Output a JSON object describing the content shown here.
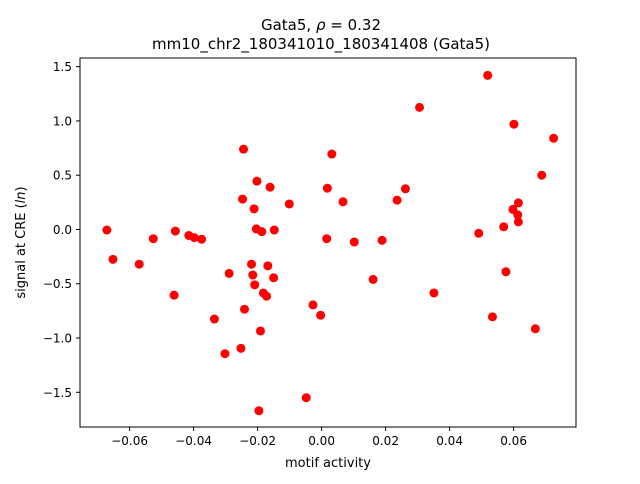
{
  "chart_data": {
    "type": "scatter",
    "title_prefix": "Gata5, ",
    "title_rho": "ρ",
    "title_value": " = 0.32",
    "subtitle": "mm10_chr2_180341010_180341408 (Gata5)",
    "xlabel": "motif activity",
    "ylabel_prefix": "signal at CRE (",
    "ylabel_italic": "ln",
    "ylabel_suffix": ")",
    "xlim": [
      -0.0755,
      0.0795
    ],
    "ylim": [
      -1.82,
      1.58
    ],
    "xticks": [
      -0.06,
      -0.04,
      -0.02,
      0.0,
      0.02,
      0.04,
      0.06
    ],
    "xtick_labels": [
      "−0.06",
      "−0.04",
      "−0.02",
      "0.00",
      "0.02",
      "0.04",
      "0.06"
    ],
    "yticks": [
      -1.5,
      -1.0,
      -0.5,
      0.0,
      0.5,
      1.0,
      1.5
    ],
    "ytick_labels": [
      "−1.5",
      "−1.0",
      "−0.5",
      "0.0",
      "0.5",
      "1.0",
      "1.5"
    ],
    "marker_color": "#ff0000",
    "grid": false,
    "points": [
      {
        "x": -0.0671,
        "y": -0.005
      },
      {
        "x": -0.0652,
        "y": -0.275
      },
      {
        "x": -0.057,
        "y": -0.32
      },
      {
        "x": -0.0526,
        "y": -0.085
      },
      {
        "x": -0.0461,
        "y": -0.605
      },
      {
        "x": -0.0457,
        "y": -0.015
      },
      {
        "x": -0.0415,
        "y": -0.055
      },
      {
        "x": -0.0398,
        "y": -0.075
      },
      {
        "x": -0.0375,
        "y": -0.09
      },
      {
        "x": -0.0335,
        "y": -0.825
      },
      {
        "x": -0.0302,
        "y": -1.145
      },
      {
        "x": -0.0289,
        "y": -0.405
      },
      {
        "x": -0.0252,
        "y": -1.095
      },
      {
        "x": -0.0247,
        "y": 0.28
      },
      {
        "x": -0.0244,
        "y": 0.74
      },
      {
        "x": -0.0241,
        "y": -0.735
      },
      {
        "x": -0.0219,
        "y": -0.32
      },
      {
        "x": -0.0215,
        "y": -0.42
      },
      {
        "x": -0.0211,
        "y": 0.19
      },
      {
        "x": -0.0209,
        "y": -0.51
      },
      {
        "x": -0.0204,
        "y": 0.005
      },
      {
        "x": -0.0202,
        "y": 0.445
      },
      {
        "x": -0.0196,
        "y": -1.67
      },
      {
        "x": -0.0191,
        "y": -0.935
      },
      {
        "x": -0.0187,
        "y": -0.02
      },
      {
        "x": -0.0182,
        "y": -0.585
      },
      {
        "x": -0.0172,
        "y": -0.615
      },
      {
        "x": -0.0168,
        "y": -0.335
      },
      {
        "x": -0.0161,
        "y": 0.39
      },
      {
        "x": -0.015,
        "y": -0.445
      },
      {
        "x": -0.0148,
        "y": -0.005
      },
      {
        "x": -0.0101,
        "y": 0.235
      },
      {
        "x": -0.0048,
        "y": -1.55
      },
      {
        "x": -0.0027,
        "y": -0.695
      },
      {
        "x": -0.0003,
        "y": -0.79
      },
      {
        "x": 0.0016,
        "y": -0.085
      },
      {
        "x": 0.0018,
        "y": 0.38
      },
      {
        "x": 0.0032,
        "y": 0.695
      },
      {
        "x": 0.0067,
        "y": 0.255
      },
      {
        "x": 0.0102,
        "y": -0.115
      },
      {
        "x": 0.0161,
        "y": -0.46
      },
      {
        "x": 0.0189,
        "y": -0.1
      },
      {
        "x": 0.0236,
        "y": 0.27
      },
      {
        "x": 0.0262,
        "y": 0.375
      },
      {
        "x": 0.0306,
        "y": 1.125
      },
      {
        "x": 0.0351,
        "y": -0.585
      },
      {
        "x": 0.0491,
        "y": -0.035
      },
      {
        "x": 0.0519,
        "y": 1.42
      },
      {
        "x": 0.0534,
        "y": -0.805
      },
      {
        "x": 0.0569,
        "y": 0.025
      },
      {
        "x": 0.0576,
        "y": -0.39
      },
      {
        "x": 0.0598,
        "y": 0.185
      },
      {
        "x": 0.0601,
        "y": 0.97
      },
      {
        "x": 0.0613,
        "y": 0.135
      },
      {
        "x": 0.0615,
        "y": 0.245
      },
      {
        "x": 0.0615,
        "y": 0.07
      },
      {
        "x": 0.0668,
        "y": -0.915
      },
      {
        "x": 0.0688,
        "y": 0.5
      },
      {
        "x": 0.0725,
        "y": 0.84
      }
    ]
  }
}
